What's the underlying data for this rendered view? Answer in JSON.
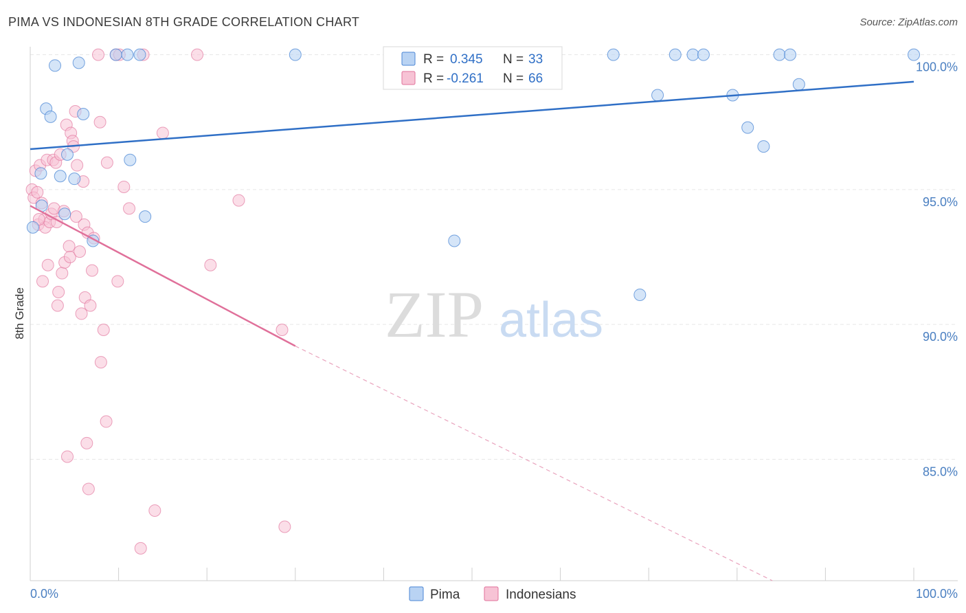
{
  "title": "PIMA VS INDONESIAN 8TH GRADE CORRELATION CHART",
  "source": "Source: ZipAtlas.com",
  "watermark": {
    "zip": "ZIP",
    "atlas": "atlas"
  },
  "legend": {
    "pima": {
      "r_label": "R =",
      "r_value": "0.345",
      "n_label": "N =",
      "n_value": "33"
    },
    "indonesians": {
      "r_label": "R =",
      "r_value": "-0.261",
      "n_label": "N =",
      "n_value": "66"
    }
  },
  "colors": {
    "pima": "#4a86d4",
    "pima_fill": "#b9d3f3",
    "indonesians": "#e0709a",
    "indonesians_fill": "#f7c3d5",
    "tick": "#4a7fc1"
  },
  "chart_data": {
    "type": "scatter",
    "title": "PIMA VS INDONESIAN 8TH GRADE CORRELATION CHART",
    "xlabel": "",
    "ylabel": "8th Grade",
    "xlim": [
      0,
      100
    ],
    "ylim": [
      80.5,
      100.5
    ],
    "x_tick_labels": [
      "0.0%",
      "100.0%"
    ],
    "y_ticks": [
      85,
      90,
      95,
      100
    ],
    "y_tick_labels": [
      "85.0%",
      "90.0%",
      "95.0%",
      "100.0%"
    ],
    "grid": true,
    "legend_position": "top-center",
    "series": [
      {
        "name": "Pima",
        "points": [
          [
            0.3,
            93.6
          ],
          [
            1.2,
            95.6
          ],
          [
            1.3,
            94.4
          ],
          [
            1.8,
            98.0
          ],
          [
            2.3,
            97.7
          ],
          [
            2.8,
            99.6
          ],
          [
            3.4,
            95.5
          ],
          [
            3.9,
            94.1
          ],
          [
            4.2,
            96.3
          ],
          [
            5.0,
            95.4
          ],
          [
            5.5,
            99.7
          ],
          [
            6.0,
            97.8
          ],
          [
            7.1,
            93.1
          ],
          [
            9.7,
            100.0
          ],
          [
            11.0,
            100.0
          ],
          [
            11.3,
            96.1
          ],
          [
            12.4,
            100.0
          ],
          [
            13.0,
            94.0
          ],
          [
            30.0,
            100.0
          ],
          [
            48.0,
            93.1
          ],
          [
            66.0,
            100.0
          ],
          [
            69.0,
            91.1
          ],
          [
            71.0,
            98.5
          ],
          [
            73.0,
            100.0
          ],
          [
            75.0,
            100.0
          ],
          [
            76.2,
            100.0
          ],
          [
            79.5,
            98.5
          ],
          [
            81.2,
            97.3
          ],
          [
            83.0,
            96.6
          ],
          [
            84.8,
            100.0
          ],
          [
            86.0,
            100.0
          ],
          [
            87.0,
            98.9
          ],
          [
            100.0,
            100.0
          ]
        ],
        "trend": [
          [
            0,
            96.5
          ],
          [
            100,
            99.0
          ]
        ]
      },
      {
        "name": "Indonesians",
        "points": [
          [
            0.2,
            95.0
          ],
          [
            0.4,
            94.7
          ],
          [
            0.6,
            95.7
          ],
          [
            0.8,
            94.9
          ],
          [
            0.9,
            93.7
          ],
          [
            1.1,
            95.9
          ],
          [
            1.3,
            94.5
          ],
          [
            1.4,
            91.6
          ],
          [
            1.6,
            93.9
          ],
          [
            1.7,
            93.6
          ],
          [
            1.9,
            96.1
          ],
          [
            2.0,
            92.2
          ],
          [
            2.2,
            93.8
          ],
          [
            2.4,
            94.1
          ],
          [
            2.6,
            96.1
          ],
          [
            2.7,
            94.3
          ],
          [
            2.9,
            96.0
          ],
          [
            3.1,
            90.7
          ],
          [
            3.2,
            91.2
          ],
          [
            3.4,
            96.3
          ],
          [
            3.6,
            91.9
          ],
          [
            3.8,
            94.2
          ],
          [
            3.9,
            92.3
          ],
          [
            4.1,
            97.4
          ],
          [
            4.2,
            85.1
          ],
          [
            4.4,
            92.9
          ],
          [
            4.5,
            92.5
          ],
          [
            4.6,
            97.1
          ],
          [
            4.8,
            96.8
          ],
          [
            4.9,
            96.6
          ],
          [
            5.1,
            97.9
          ],
          [
            5.2,
            94.0
          ],
          [
            5.3,
            95.9
          ],
          [
            5.6,
            92.7
          ],
          [
            5.8,
            90.4
          ],
          [
            6.0,
            95.3
          ],
          [
            6.1,
            93.7
          ],
          [
            6.2,
            91.0
          ],
          [
            6.4,
            85.6
          ],
          [
            6.5,
            93.4
          ],
          [
            6.6,
            83.9
          ],
          [
            6.8,
            90.7
          ],
          [
            7.0,
            92.0
          ],
          [
            7.2,
            93.2
          ],
          [
            7.7,
            100.0
          ],
          [
            7.9,
            97.5
          ],
          [
            8.0,
            88.6
          ],
          [
            8.3,
            89.8
          ],
          [
            8.6,
            86.4
          ],
          [
            8.7,
            96.0
          ],
          [
            9.7,
            100.0
          ],
          [
            9.9,
            91.6
          ],
          [
            10.1,
            100.0
          ],
          [
            10.6,
            95.1
          ],
          [
            12.8,
            100.0
          ],
          [
            14.1,
            83.1
          ],
          [
            12.5,
            81.7
          ],
          [
            15.0,
            97.1
          ],
          [
            18.9,
            100.0
          ],
          [
            20.4,
            92.2
          ],
          [
            23.6,
            94.6
          ],
          [
            28.5,
            89.8
          ],
          [
            28.8,
            82.5
          ],
          [
            11.2,
            94.3
          ],
          [
            3.0,
            93.8
          ],
          [
            1.0,
            93.9
          ]
        ],
        "trend_solid": [
          [
            0,
            94.4
          ],
          [
            30,
            89.2
          ]
        ],
        "trend_dashed": [
          [
            30,
            89.2
          ],
          [
            84,
            80.5
          ]
        ]
      }
    ]
  }
}
